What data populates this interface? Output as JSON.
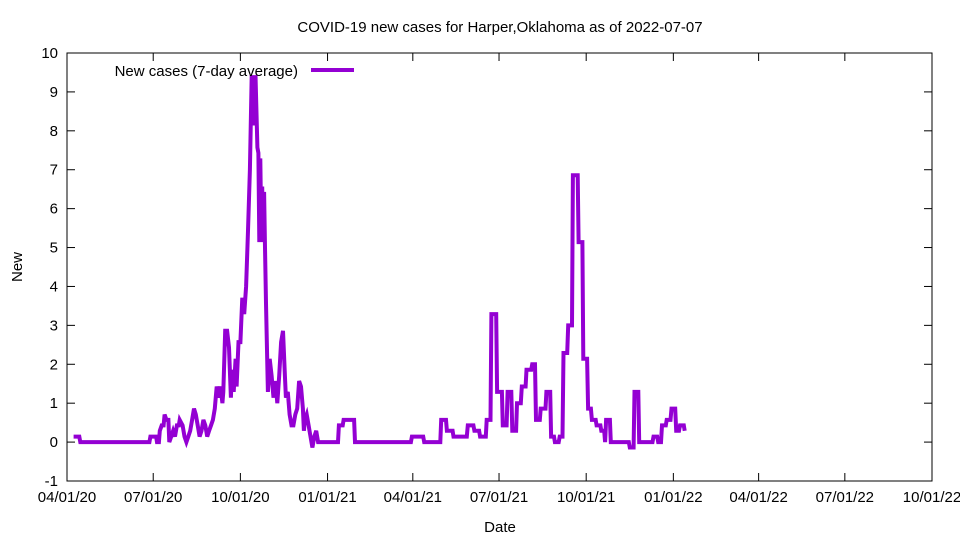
{
  "chart_data": {
    "type": "line",
    "title": "COVID-19 new cases for Harper,Oklahoma as of 2022-07-07",
    "xlabel": "Date",
    "ylabel": "New",
    "ylim": [
      -1,
      10
    ],
    "xlim": [
      "2020-04-01",
      "2022-10-01"
    ],
    "grid": false,
    "legend_position": "top-left",
    "y_ticks": [
      "-1",
      "0",
      "1",
      "2",
      "3",
      "4",
      "5",
      "6",
      "7",
      "8",
      "9",
      "10"
    ],
    "x_ticks": [
      {
        "date": "2020-04-01",
        "label": "04/01/20"
      },
      {
        "date": "2020-07-01",
        "label": "07/01/20"
      },
      {
        "date": "2020-10-01",
        "label": "10/01/20"
      },
      {
        "date": "2021-01-01",
        "label": "01/01/21"
      },
      {
        "date": "2021-04-01",
        "label": "04/01/21"
      },
      {
        "date": "2021-07-01",
        "label": "07/01/21"
      },
      {
        "date": "2021-10-01",
        "label": "10/01/21"
      },
      {
        "date": "2022-01-01",
        "label": "01/01/22"
      },
      {
        "date": "2022-04-01",
        "label": "04/01/22"
      },
      {
        "date": "2022-07-01",
        "label": "07/01/22"
      },
      {
        "date": "2022-10-01",
        "label": "10/01/22"
      }
    ],
    "series": [
      {
        "name": "New cases (7-day average)",
        "color": "#9400d3",
        "points": [
          [
            "2020-04-08",
            0.14
          ],
          [
            "2020-04-14",
            0.14
          ],
          [
            "2020-04-15",
            0.0
          ],
          [
            "2020-06-27",
            0.0
          ],
          [
            "2020-06-28",
            0.14
          ],
          [
            "2020-07-04",
            0.14
          ],
          [
            "2020-07-05",
            0.0
          ],
          [
            "2020-07-07",
            0.0
          ],
          [
            "2020-07-08",
            0.29
          ],
          [
            "2020-07-10",
            0.43
          ],
          [
            "2020-07-12",
            0.43
          ],
          [
            "2020-07-13",
            0.71
          ],
          [
            "2020-07-15",
            0.57
          ],
          [
            "2020-07-17",
            0.57
          ],
          [
            "2020-07-18",
            0.0
          ],
          [
            "2020-07-20",
            0.14
          ],
          [
            "2020-07-22",
            0.29
          ],
          [
            "2020-07-24",
            0.14
          ],
          [
            "2020-07-26",
            0.43
          ],
          [
            "2020-07-28",
            0.43
          ],
          [
            "2020-07-29",
            0.57
          ],
          [
            "2020-08-01",
            0.43
          ],
          [
            "2020-08-03",
            0.14
          ],
          [
            "2020-08-05",
            0.0
          ],
          [
            "2020-08-07",
            0.14
          ],
          [
            "2020-08-09",
            0.29
          ],
          [
            "2020-08-11",
            0.57
          ],
          [
            "2020-08-13",
            0.86
          ],
          [
            "2020-08-15",
            0.71
          ],
          [
            "2020-08-17",
            0.43
          ],
          [
            "2020-08-19",
            0.14
          ],
          [
            "2020-08-21",
            0.29
          ],
          [
            "2020-08-23",
            0.57
          ],
          [
            "2020-08-25",
            0.43
          ],
          [
            "2020-08-27",
            0.14
          ],
          [
            "2020-08-29",
            0.29
          ],
          [
            "2020-08-31",
            0.43
          ],
          [
            "2020-09-02",
            0.57
          ],
          [
            "2020-09-04",
            0.86
          ],
          [
            "2020-09-06",
            1.43
          ],
          [
            "2020-09-08",
            1.14
          ],
          [
            "2020-09-10",
            1.43
          ],
          [
            "2020-09-12",
            1.0
          ],
          [
            "2020-09-13",
            1.29
          ],
          [
            "2020-09-15",
            2.86
          ],
          [
            "2020-09-17",
            2.86
          ],
          [
            "2020-09-19",
            2.43
          ],
          [
            "2020-09-21",
            1.14
          ],
          [
            "2020-09-22",
            1.86
          ],
          [
            "2020-09-24",
            1.29
          ],
          [
            "2020-09-26",
            2.14
          ],
          [
            "2020-09-27",
            1.43
          ],
          [
            "2020-09-29",
            2.57
          ],
          [
            "2020-10-01",
            2.57
          ],
          [
            "2020-10-03",
            3.71
          ],
          [
            "2020-10-05",
            3.29
          ],
          [
            "2020-10-07",
            4.0
          ],
          [
            "2020-10-09",
            5.43
          ],
          [
            "2020-10-11",
            7.0
          ],
          [
            "2020-10-13",
            9.43
          ],
          [
            "2020-10-15",
            8.14
          ],
          [
            "2020-10-17",
            9.43
          ],
          [
            "2020-10-19",
            7.57
          ],
          [
            "2020-10-20",
            7.43
          ],
          [
            "2020-10-21",
            5.14
          ],
          [
            "2020-10-22",
            7.29
          ],
          [
            "2020-10-23",
            5.57
          ],
          [
            "2020-10-24",
            6.57
          ],
          [
            "2020-10-25",
            5.14
          ],
          [
            "2020-10-26",
            6.43
          ],
          [
            "2020-10-27",
            5.0
          ],
          [
            "2020-10-28",
            3.57
          ],
          [
            "2020-10-30",
            1.29
          ],
          [
            "2020-11-01",
            2.14
          ],
          [
            "2020-11-03",
            1.71
          ],
          [
            "2020-11-05",
            1.14
          ],
          [
            "2020-11-07",
            1.57
          ],
          [
            "2020-11-09",
            1.0
          ],
          [
            "2020-11-11",
            1.71
          ],
          [
            "2020-11-13",
            2.57
          ],
          [
            "2020-11-15",
            2.86
          ],
          [
            "2020-11-17",
            1.71
          ],
          [
            "2020-11-18",
            1.14
          ],
          [
            "2020-11-20",
            1.29
          ],
          [
            "2020-11-22",
            0.71
          ],
          [
            "2020-11-24",
            0.43
          ],
          [
            "2020-11-26",
            0.43
          ],
          [
            "2020-11-28",
            0.71
          ],
          [
            "2020-11-30",
            0.86
          ],
          [
            "2020-12-02",
            1.57
          ],
          [
            "2020-12-04",
            1.43
          ],
          [
            "2020-12-06",
            0.86
          ],
          [
            "2020-12-07",
            0.29
          ],
          [
            "2020-12-08",
            0.57
          ],
          [
            "2020-12-10",
            0.71
          ],
          [
            "2020-12-12",
            0.43
          ],
          [
            "2020-12-14",
            0.14
          ],
          [
            "2020-12-16",
            -0.14
          ],
          [
            "2020-12-18",
            0.14
          ],
          [
            "2020-12-20",
            0.29
          ],
          [
            "2020-12-22",
            0.0
          ],
          [
            "2020-12-24",
            0.0
          ],
          [
            "2021-01-12",
            0.0
          ],
          [
            "2021-01-13",
            0.43
          ],
          [
            "2021-01-17",
            0.43
          ],
          [
            "2021-01-18",
            0.57
          ],
          [
            "2021-01-29",
            0.57
          ],
          [
            "2021-01-30",
            0.0
          ],
          [
            "2021-03-30",
            0.0
          ],
          [
            "2021-03-31",
            0.14
          ],
          [
            "2021-04-12",
            0.14
          ],
          [
            "2021-04-13",
            0.0
          ],
          [
            "2021-04-30",
            0.0
          ],
          [
            "2021-05-01",
            0.57
          ],
          [
            "2021-05-06",
            0.57
          ],
          [
            "2021-05-07",
            0.29
          ],
          [
            "2021-05-13",
            0.29
          ],
          [
            "2021-05-14",
            0.14
          ],
          [
            "2021-05-28",
            0.14
          ],
          [
            "2021-05-29",
            0.43
          ],
          [
            "2021-06-04",
            0.43
          ],
          [
            "2021-06-05",
            0.29
          ],
          [
            "2021-06-10",
            0.29
          ],
          [
            "2021-06-11",
            0.14
          ],
          [
            "2021-06-17",
            0.14
          ],
          [
            "2021-06-18",
            0.57
          ],
          [
            "2021-06-22",
            0.57
          ],
          [
            "2021-06-23",
            3.29
          ],
          [
            "2021-06-28",
            3.29
          ],
          [
            "2021-06-29",
            1.29
          ],
          [
            "2021-07-04",
            1.29
          ],
          [
            "2021-07-05",
            0.43
          ],
          [
            "2021-07-09",
            0.43
          ],
          [
            "2021-07-10",
            1.29
          ],
          [
            "2021-07-14",
            1.29
          ],
          [
            "2021-07-15",
            0.29
          ],
          [
            "2021-07-19",
            0.29
          ],
          [
            "2021-07-20",
            1.0
          ],
          [
            "2021-07-24",
            1.0
          ],
          [
            "2021-07-25",
            1.43
          ],
          [
            "2021-07-29",
            1.43
          ],
          [
            "2021-07-30",
            1.86
          ],
          [
            "2021-08-04",
            1.86
          ],
          [
            "2021-08-05",
            2.0
          ],
          [
            "2021-08-08",
            2.0
          ],
          [
            "2021-08-09",
            0.57
          ],
          [
            "2021-08-13",
            0.57
          ],
          [
            "2021-08-14",
            0.86
          ],
          [
            "2021-08-19",
            0.86
          ],
          [
            "2021-08-20",
            1.29
          ],
          [
            "2021-08-24",
            1.29
          ],
          [
            "2021-08-25",
            0.14
          ],
          [
            "2021-08-28",
            0.14
          ],
          [
            "2021-08-29",
            0.0
          ],
          [
            "2021-09-02",
            0.0
          ],
          [
            "2021-09-03",
            0.14
          ],
          [
            "2021-09-06",
            0.14
          ],
          [
            "2021-09-07",
            2.29
          ],
          [
            "2021-09-11",
            2.29
          ],
          [
            "2021-09-12",
            3.0
          ],
          [
            "2021-09-16",
            3.0
          ],
          [
            "2021-09-17",
            6.86
          ],
          [
            "2021-09-22",
            6.86
          ],
          [
            "2021-09-23",
            5.14
          ],
          [
            "2021-09-27",
            5.14
          ],
          [
            "2021-09-28",
            2.14
          ],
          [
            "2021-10-02",
            2.14
          ],
          [
            "2021-10-03",
            0.86
          ],
          [
            "2021-10-06",
            0.86
          ],
          [
            "2021-10-07",
            0.57
          ],
          [
            "2021-10-11",
            0.57
          ],
          [
            "2021-10-12",
            0.43
          ],
          [
            "2021-10-16",
            0.43
          ],
          [
            "2021-10-17",
            0.29
          ],
          [
            "2021-10-20",
            0.29
          ],
          [
            "2021-10-21",
            0.0
          ],
          [
            "2021-10-22",
            0.57
          ],
          [
            "2021-10-26",
            0.57
          ],
          [
            "2021-10-27",
            0.0
          ],
          [
            "2021-11-15",
            0.0
          ],
          [
            "2021-11-16",
            -0.14
          ],
          [
            "2021-11-20",
            -0.14
          ],
          [
            "2021-11-21",
            1.29
          ],
          [
            "2021-11-25",
            1.29
          ],
          [
            "2021-11-26",
            0.0
          ],
          [
            "2021-12-10",
            0.0
          ],
          [
            "2021-12-11",
            0.14
          ],
          [
            "2021-12-15",
            0.14
          ],
          [
            "2021-12-16",
            0.0
          ],
          [
            "2021-12-19",
            0.0
          ],
          [
            "2021-12-20",
            0.43
          ],
          [
            "2021-12-24",
            0.43
          ],
          [
            "2021-12-25",
            0.57
          ],
          [
            "2021-12-29",
            0.57
          ],
          [
            "2021-12-30",
            0.86
          ],
          [
            "2022-01-03",
            0.86
          ],
          [
            "2022-01-04",
            0.29
          ],
          [
            "2022-01-07",
            0.29
          ],
          [
            "2022-01-08",
            0.43
          ],
          [
            "2022-01-12",
            0.43
          ],
          [
            "2022-01-13",
            0.29
          ]
        ]
      }
    ]
  }
}
